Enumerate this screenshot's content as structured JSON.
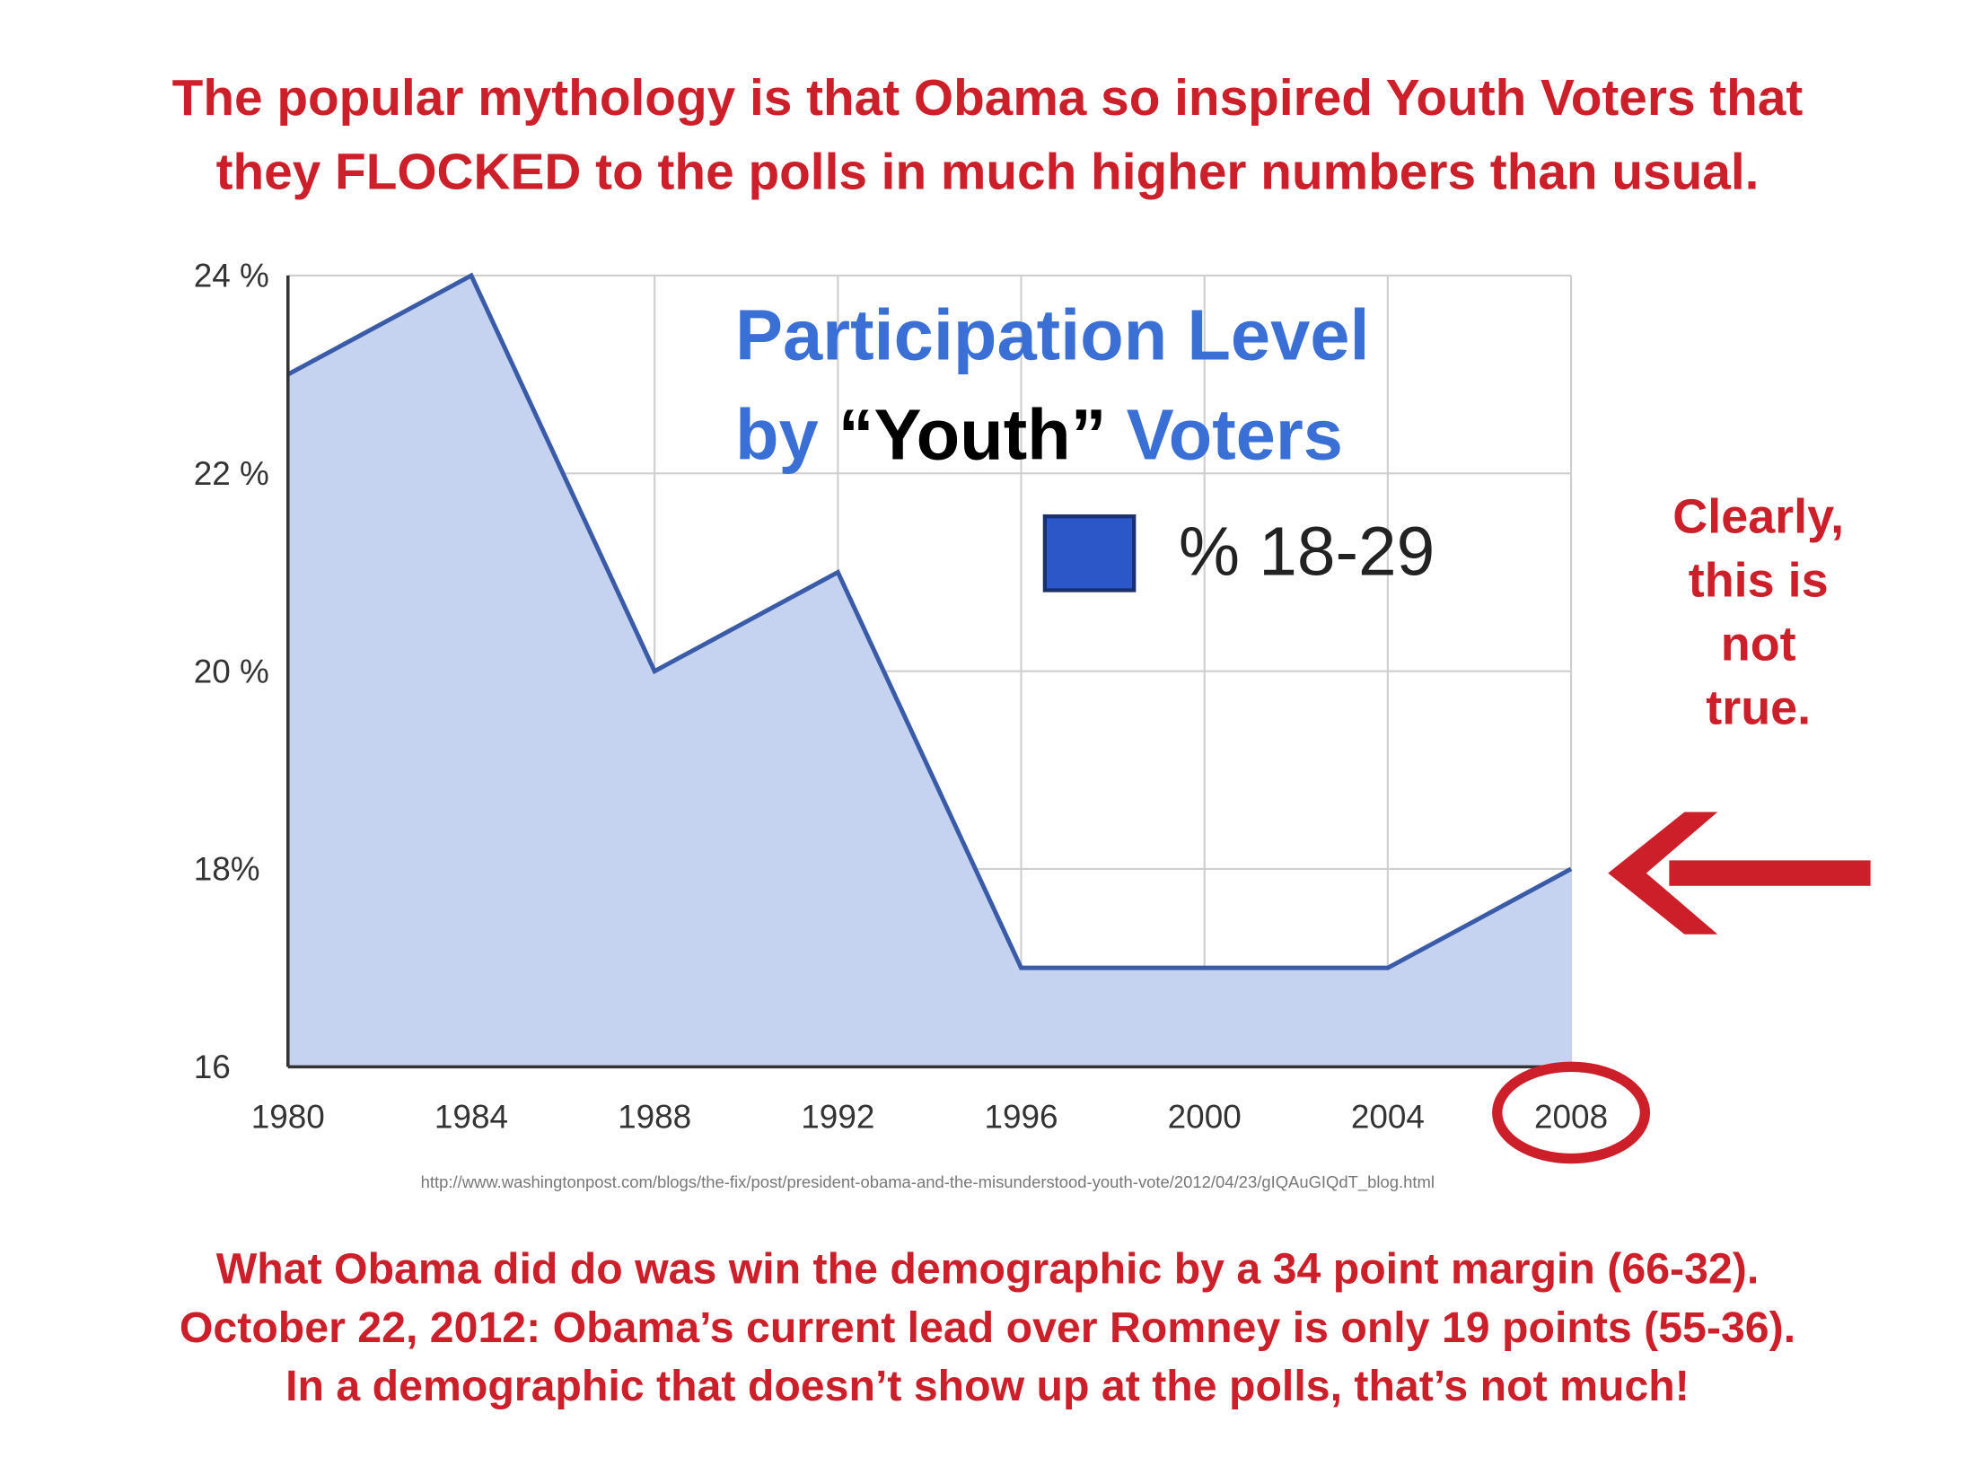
{
  "header": {
    "lines": [
      "The popular mythology is that Obama so inspired Youth Voters that",
      "they FLOCKED to the polls in much higher numbers than usual."
    ]
  },
  "chart_data": {
    "type": "area",
    "title": [
      "Participation Level",
      "by",
      "“Youth”",
      "Voters"
    ],
    "categories": [
      "1980",
      "1984",
      "1988",
      "1992",
      "1996",
      "2000",
      "2004",
      "2008"
    ],
    "series": [
      {
        "name": "% 18-29",
        "color": "#3a5ba8",
        "values": [
          23,
          24,
          20,
          21,
          17,
          17,
          17,
          18
        ]
      }
    ],
    "ylim": [
      16,
      24
    ],
    "yticks": [
      16,
      {
        "value": 18,
        "label": "18%"
      },
      {
        "value": 20,
        "label": "20 %"
      },
      {
        "value": 22,
        "label": "22 %"
      },
      {
        "value": 24,
        "label": "24 %"
      }
    ],
    "grid": true
  },
  "annotation": {
    "lines": [
      "Clearly,",
      "this is",
      "not",
      "true."
    ]
  },
  "source": "http://www.washingtonpost.com/blogs/the-fix/post/president-obama-and-the-misunderstood-youth-vote/2012/04/23/gIQAuGIQdT_blog.html",
  "footer": {
    "lines": [
      "What Obama did do was win the demographic by a 34 point margin (66-32).",
      "October 22, 2012: Obama’s current lead over Romney is only 19 points (55-36).",
      "In a demographic that doesn’t show up at the polls, that’s not much!"
    ]
  }
}
